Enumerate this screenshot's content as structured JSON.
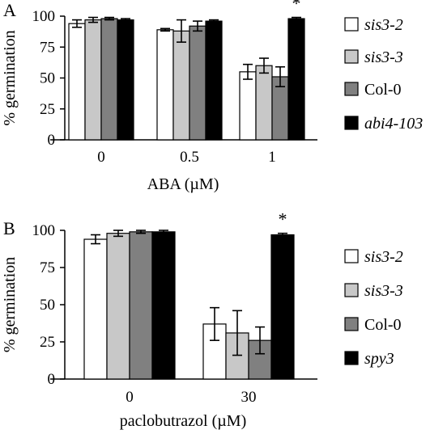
{
  "chart_data": [
    {
      "type": "bar",
      "panel_label": "A",
      "categories": [
        "0",
        "0.5",
        "1"
      ],
      "xlabel": "ABA (µM)",
      "ylabel": "% germination",
      "ylim": [
        0,
        100
      ],
      "yticks": [
        "0",
        "25",
        "50",
        "75",
        "100"
      ],
      "series": [
        {
          "name": "sis3-2",
          "italic": true,
          "color": "#ffffff",
          "values": [
            94,
            89,
            55
          ],
          "errors": [
            3,
            1,
            6
          ]
        },
        {
          "name": "sis3-3",
          "italic": true,
          "color": "#c8c8c8",
          "values": [
            97,
            88,
            60
          ],
          "errors": [
            2,
            9,
            6
          ]
        },
        {
          "name": "Col-0",
          "italic": false,
          "color": "#808080",
          "values": [
            98,
            92,
            51
          ],
          "errors": [
            1,
            4,
            8
          ]
        },
        {
          "name": "abi4-103",
          "italic": true,
          "color": "#000000",
          "values": [
            97,
            96,
            98
          ],
          "errors": [
            1,
            1,
            1
          ]
        }
      ],
      "annotations": [
        {
          "category": "1",
          "series": "abi4-103",
          "text": "*"
        }
      ],
      "legend_position": "right"
    },
    {
      "type": "bar",
      "panel_label": "B",
      "categories": [
        "0",
        "30"
      ],
      "xlabel": "paclobutrazol (µM)",
      "ylabel": "% germination",
      "ylim": [
        0,
        100
      ],
      "yticks": [
        "0",
        "25",
        "50",
        "75",
        "100"
      ],
      "series": [
        {
          "name": "sis3-2",
          "italic": true,
          "color": "#ffffff",
          "values": [
            94,
            37
          ],
          "errors": [
            3,
            11
          ]
        },
        {
          "name": "sis3-3",
          "italic": true,
          "color": "#c8c8c8",
          "values": [
            98,
            31
          ],
          "errors": [
            2,
            15
          ]
        },
        {
          "name": "Col-0",
          "italic": false,
          "color": "#808080",
          "values": [
            99,
            26
          ],
          "errors": [
            1,
            9
          ]
        },
        {
          "name": "spy3",
          "italic": true,
          "color": "#000000",
          "values": [
            99,
            97
          ],
          "errors": [
            1,
            1
          ]
        }
      ],
      "annotations": [
        {
          "category": "30",
          "series": "spy3",
          "text": "*"
        }
      ],
      "legend_position": "right"
    }
  ]
}
